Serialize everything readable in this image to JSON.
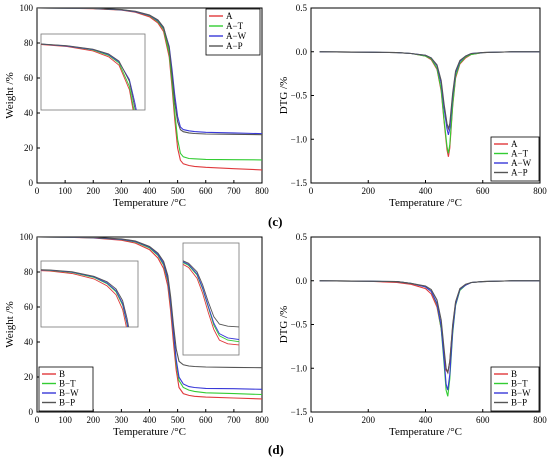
{
  "panel_labels": [
    "(c)",
    "(d)"
  ],
  "chart_data": [
    {
      "id": "tg-A",
      "type": "line",
      "xlabel": "Temperature /°C",
      "ylabel": "Weight /%",
      "xlim": [
        0,
        800
      ],
      "ylim": [
        0,
        100
      ],
      "xticks": [
        0,
        100,
        200,
        300,
        400,
        500,
        600,
        700,
        800
      ],
      "yticks": [
        0,
        20,
        40,
        60,
        80,
        100
      ],
      "legend": "top-right",
      "series": [
        {
          "name": "A",
          "color": "#e0393c",
          "x": [
            0,
            100,
            200,
            300,
            350,
            400,
            430,
            450,
            470,
            480,
            490,
            500,
            510,
            520,
            540,
            560,
            600,
            700,
            800
          ],
          "y": [
            100,
            99.9,
            99.6,
            98.8,
            97.6,
            95.0,
            91.5,
            86.5,
            72,
            55,
            36,
            20,
            13,
            11,
            10,
            9.5,
            9,
            8.2,
            7.5
          ]
        },
        {
          "name": "A−T",
          "color": "#33cc33",
          "x": [
            0,
            100,
            200,
            300,
            350,
            400,
            430,
            450,
            470,
            480,
            490,
            500,
            510,
            520,
            540,
            560,
            600,
            700,
            800
          ],
          "y": [
            100,
            99.9,
            99.7,
            99.0,
            97.9,
            95.6,
            92.3,
            87.8,
            74,
            58,
            40,
            25,
            17,
            15,
            14,
            13.8,
            13.5,
            13.3,
            13.2
          ]
        },
        {
          "name": "A−W",
          "color": "#3939d8",
          "x": [
            0,
            100,
            200,
            300,
            350,
            400,
            430,
            450,
            470,
            480,
            490,
            500,
            510,
            520,
            540,
            560,
            600,
            700,
            800
          ],
          "y": [
            100,
            99.9,
            99.7,
            99.0,
            97.9,
            95.8,
            92.8,
            88.5,
            78,
            65,
            50,
            38,
            32,
            30.5,
            29.8,
            29.4,
            29,
            28.6,
            28.2
          ]
        },
        {
          "name": "A−P",
          "color": "#555555",
          "x": [
            0,
            100,
            200,
            300,
            350,
            400,
            430,
            450,
            470,
            480,
            490,
            500,
            510,
            520,
            540,
            560,
            600,
            700,
            800
          ],
          "y": [
            100,
            99.9,
            99.7,
            99.1,
            98.1,
            96.0,
            93.2,
            89.0,
            77,
            62,
            46,
            35,
            30.5,
            29.3,
            28.6,
            28.3,
            28,
            27.8,
            27.6
          ]
        }
      ],
      "inset": "zoom of onset region (~350–450 °C)"
    },
    {
      "id": "dtg-A",
      "type": "line",
      "xlabel": "Temperature /°C",
      "ylabel": "DTG /%",
      "xlim": [
        0,
        800
      ],
      "ylim": [
        -1.5,
        0.5
      ],
      "xticks": [
        0,
        200,
        400,
        600,
        800
      ],
      "yticks": [
        0.5,
        0.0,
        -0.5,
        -1.0,
        -1.5
      ],
      "legend": "bottom-right",
      "series": [
        {
          "name": "A",
          "color": "#e0393c",
          "x": [
            30,
            200,
            300,
            350,
            400,
            420,
            440,
            455,
            465,
            475,
            480,
            485,
            495,
            505,
            520,
            540,
            560,
            600,
            700,
            800
          ],
          "y": [
            0,
            -0.005,
            -0.01,
            -0.02,
            -0.05,
            -0.09,
            -0.2,
            -0.45,
            -0.8,
            -1.12,
            -1.2,
            -1.1,
            -0.62,
            -0.3,
            -0.14,
            -0.07,
            -0.03,
            -0.01,
            0,
            0
          ]
        },
        {
          "name": "A−T",
          "color": "#33cc33",
          "x": [
            30,
            200,
            300,
            350,
            400,
            420,
            440,
            455,
            465,
            475,
            480,
            485,
            495,
            505,
            520,
            540,
            560,
            600,
            700,
            800
          ],
          "y": [
            0,
            -0.005,
            -0.01,
            -0.02,
            -0.05,
            -0.08,
            -0.19,
            -0.43,
            -0.78,
            -1.08,
            -1.16,
            -1.06,
            -0.6,
            -0.28,
            -0.13,
            -0.06,
            -0.03,
            -0.01,
            0,
            0
          ]
        },
        {
          "name": "A−W",
          "color": "#3939d8",
          "x": [
            30,
            200,
            300,
            350,
            400,
            420,
            440,
            455,
            465,
            475,
            480,
            485,
            495,
            505,
            520,
            540,
            560,
            600,
            700,
            800
          ],
          "y": [
            0,
            -0.005,
            -0.01,
            -0.02,
            -0.04,
            -0.07,
            -0.16,
            -0.36,
            -0.65,
            -0.88,
            -0.95,
            -0.88,
            -0.5,
            -0.24,
            -0.11,
            -0.05,
            -0.02,
            -0.01,
            0,
            0
          ]
        },
        {
          "name": "A−P",
          "color": "#555555",
          "x": [
            30,
            200,
            300,
            350,
            400,
            420,
            440,
            455,
            465,
            475,
            480,
            485,
            495,
            505,
            520,
            540,
            560,
            600,
            700,
            800
          ],
          "y": [
            0,
            -0.005,
            -0.01,
            -0.02,
            -0.04,
            -0.07,
            -0.15,
            -0.33,
            -0.6,
            -0.82,
            -0.88,
            -0.82,
            -0.47,
            -0.22,
            -0.1,
            -0.05,
            -0.02,
            -0.01,
            0,
            0
          ]
        }
      ]
    },
    {
      "id": "tg-B",
      "type": "line",
      "xlabel": "Temperature /°C",
      "ylabel": "Weight /%",
      "xlim": [
        0,
        800
      ],
      "ylim": [
        0,
        100
      ],
      "xticks": [
        0,
        100,
        200,
        300,
        400,
        500,
        600,
        700,
        800
      ],
      "yticks": [
        0,
        20,
        40,
        60,
        80,
        100
      ],
      "legend": "bottom-left",
      "series": [
        {
          "name": "B",
          "color": "#e0393c",
          "x": [
            0,
            100,
            200,
            300,
            350,
            400,
            430,
            450,
            465,
            475,
            485,
            495,
            505,
            520,
            540,
            560,
            600,
            700,
            800
          ],
          "y": [
            100,
            99.9,
            99.5,
            98.2,
            96.5,
            92.8,
            88.0,
            82.0,
            72,
            58,
            40,
            24,
            14,
            10.5,
            9.5,
            9,
            8.5,
            8,
            7.5
          ]
        },
        {
          "name": "B−T",
          "color": "#33cc33",
          "x": [
            0,
            100,
            200,
            300,
            350,
            400,
            430,
            450,
            465,
            475,
            485,
            495,
            505,
            520,
            540,
            560,
            600,
            700,
            800
          ],
          "y": [
            100,
            99.9,
            99.6,
            98.6,
            97.2,
            93.8,
            89.5,
            84.0,
            75,
            62,
            45,
            28,
            18,
            14,
            12.5,
            11.8,
            11,
            10.5,
            10
          ]
        },
        {
          "name": "B−W",
          "color": "#3939d8",
          "x": [
            0,
            100,
            200,
            300,
            350,
            400,
            430,
            450,
            465,
            475,
            485,
            495,
            505,
            520,
            540,
            560,
            600,
            700,
            800
          ],
          "y": [
            100,
            99.9,
            99.6,
            98.7,
            97.4,
            94.2,
            90.0,
            84.8,
            76,
            63,
            46,
            30,
            20,
            16,
            14.5,
            14,
            13.5,
            13.3,
            13
          ]
        },
        {
          "name": "B−P",
          "color": "#555555",
          "x": [
            0,
            100,
            200,
            300,
            350,
            400,
            430,
            450,
            465,
            475,
            485,
            495,
            505,
            520,
            540,
            560,
            600,
            700,
            800
          ],
          "y": [
            100,
            99.9,
            99.7,
            98.9,
            97.7,
            94.6,
            90.8,
            86.0,
            78,
            66,
            50,
            36,
            29,
            27,
            26.3,
            26,
            25.7,
            25.5,
            25.3
          ]
        }
      ],
      "inset": "two zooms of onset/decline region"
    },
    {
      "id": "dtg-B",
      "type": "line",
      "xlabel": "Temperature /°C",
      "ylabel": "DTG /%",
      "xlim": [
        0,
        800
      ],
      "ylim": [
        -1.5,
        0.5
      ],
      "xticks": [
        0,
        200,
        400,
        600,
        800
      ],
      "yticks": [
        0.5,
        0.0,
        -0.5,
        -1.0,
        -1.5
      ],
      "legend": "bottom-right",
      "series": [
        {
          "name": "B",
          "color": "#e0393c",
          "x": [
            30,
            200,
            300,
            350,
            400,
            420,
            440,
            455,
            465,
            472,
            478,
            485,
            495,
            505,
            520,
            540,
            560,
            600,
            700,
            800
          ],
          "y": [
            0,
            -0.005,
            -0.02,
            -0.04,
            -0.09,
            -0.15,
            -0.3,
            -0.55,
            -0.85,
            -1.02,
            -1.05,
            -0.92,
            -0.52,
            -0.25,
            -0.1,
            -0.05,
            -0.02,
            -0.01,
            0,
            0
          ]
        },
        {
          "name": "B−T",
          "color": "#33cc33",
          "x": [
            30,
            200,
            300,
            350,
            400,
            420,
            440,
            455,
            465,
            472,
            478,
            485,
            495,
            505,
            520,
            540,
            560,
            600,
            700,
            800
          ],
          "y": [
            0,
            -0.005,
            -0.01,
            -0.03,
            -0.07,
            -0.12,
            -0.27,
            -0.55,
            -0.95,
            -1.25,
            -1.32,
            -1.12,
            -0.6,
            -0.28,
            -0.11,
            -0.05,
            -0.02,
            -0.01,
            0,
            0
          ]
        },
        {
          "name": "B−W",
          "color": "#3939d8",
          "x": [
            30,
            200,
            300,
            350,
            400,
            420,
            440,
            455,
            465,
            472,
            478,
            485,
            495,
            505,
            520,
            540,
            560,
            600,
            700,
            800
          ],
          "y": [
            0,
            -0.005,
            -0.01,
            -0.03,
            -0.07,
            -0.12,
            -0.26,
            -0.52,
            -0.9,
            -1.18,
            -1.25,
            -1.07,
            -0.57,
            -0.27,
            -0.1,
            -0.05,
            -0.02,
            -0.01,
            0,
            0
          ]
        },
        {
          "name": "B−P",
          "color": "#555555",
          "x": [
            30,
            200,
            300,
            350,
            400,
            420,
            440,
            455,
            465,
            472,
            478,
            485,
            495,
            505,
            520,
            540,
            560,
            600,
            700,
            800
          ],
          "y": [
            0,
            -0.005,
            -0.01,
            -0.03,
            -0.06,
            -0.1,
            -0.22,
            -0.45,
            -0.78,
            -1.0,
            -1.05,
            -0.92,
            -0.5,
            -0.24,
            -0.09,
            -0.04,
            -0.02,
            -0.01,
            0,
            0
          ]
        }
      ]
    }
  ]
}
